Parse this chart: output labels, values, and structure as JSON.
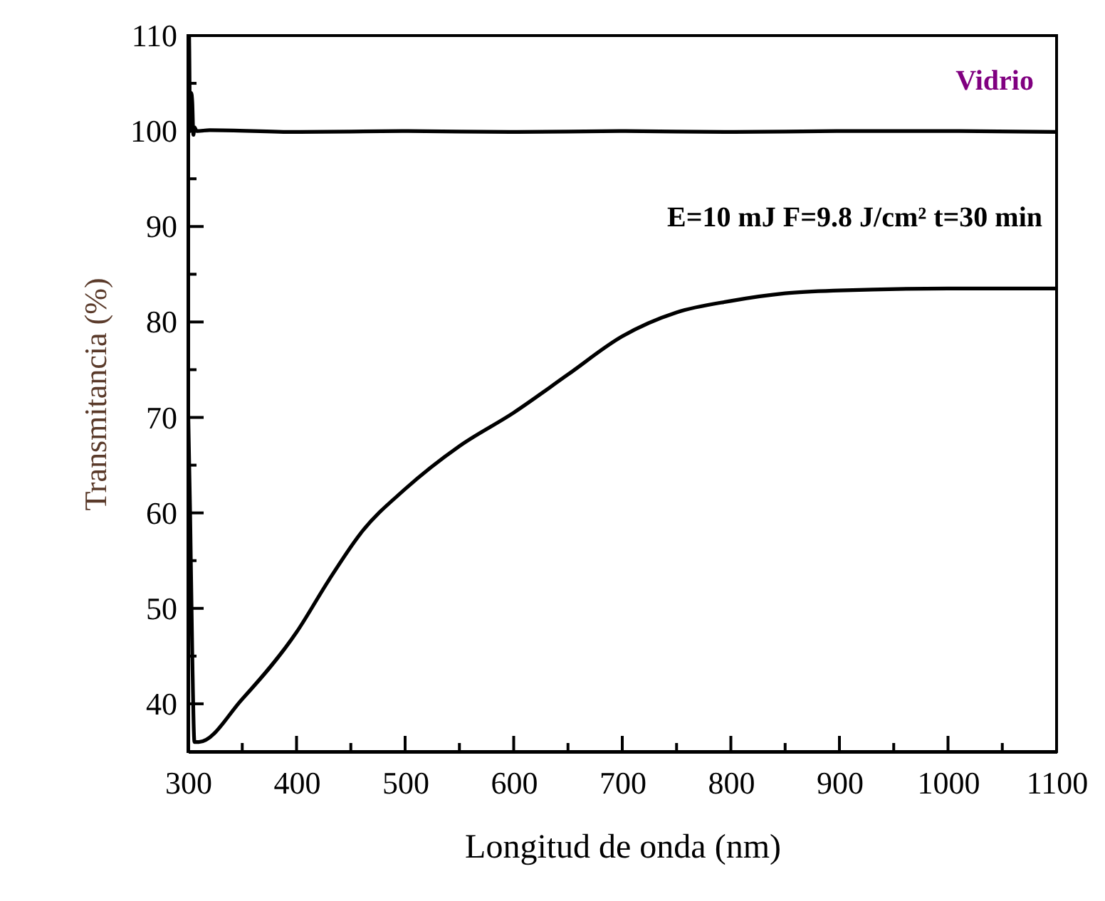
{
  "chart_data": {
    "type": "line",
    "xlabel": "Longitud de onda (nm)",
    "ylabel": "Transmitancia (%)",
    "xlim": [
      300,
      1100
    ],
    "ylim": [
      35,
      110
    ],
    "xticks": [
      300,
      {
        "value": 350,
        "label": null
      },
      400,
      {
        "value": 450,
        "label": null
      },
      500,
      {
        "value": 550,
        "label": null
      },
      600,
      {
        "value": 650,
        "label": null
      },
      700,
      {
        "value": 750,
        "label": null
      },
      800,
      {
        "value": 850,
        "label": null
      },
      900,
      {
        "value": 950,
        "label": null
      },
      1000,
      {
        "value": 1050,
        "label": null
      },
      1100
    ],
    "yticks": [
      40,
      {
        "value": 45,
        "label": null
      },
      50,
      {
        "value": 55,
        "label": null
      },
      60,
      {
        "value": 65,
        "label": null
      },
      70,
      {
        "value": 75,
        "label": null
      },
      80,
      {
        "value": 85,
        "label": null
      },
      90,
      {
        "value": 95,
        "label": null
      },
      100,
      {
        "value": 105,
        "label": null
      },
      110
    ],
    "grid": false,
    "line_style": "solid",
    "marker": "none",
    "series": [
      {
        "name": "Vidrio",
        "color": "#000000",
        "x": [
          300,
          301,
          302,
          303,
          304,
          305,
          306,
          308,
          320,
          400,
          500,
          600,
          700,
          800,
          900,
          1000,
          1100
        ],
        "values": [
          100,
          110,
          100,
          104,
          103,
          99.6,
          100.4,
          100,
          100.1,
          99.9,
          100,
          99.9,
          100,
          99.9,
          100,
          100,
          99.9
        ]
      },
      {
        "name": "E=10 mJ  F=9.8 J/cm²  t=30 min",
        "color": "#000000",
        "x": [
          300,
          302,
          304,
          306,
          310,
          350,
          400,
          430,
          460,
          500,
          550,
          600,
          650,
          700,
          750,
          800,
          850,
          900,
          1000,
          1100
        ],
        "values": [
          72,
          60,
          45,
          36,
          36,
          40.5,
          47.5,
          53,
          58,
          62.5,
          67,
          70.5,
          74.5,
          78.5,
          81,
          82.2,
          83,
          83.3,
          83.5,
          83.5
        ]
      }
    ]
  }
}
